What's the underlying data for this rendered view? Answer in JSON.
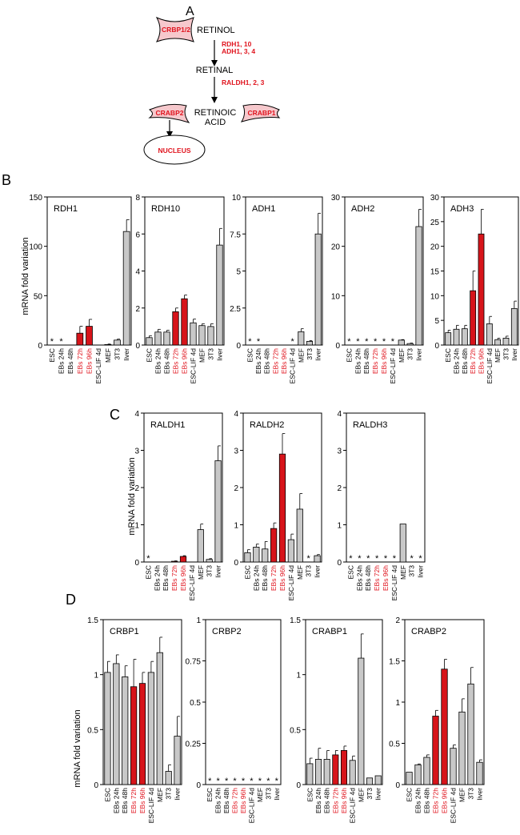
{
  "panels": {
    "A": "A",
    "B": "B",
    "C": "C",
    "D": "D"
  },
  "pathway": {
    "retinol": "RETINOL",
    "retinal": "RETINAL",
    "retinoic": "RETINOIC",
    "acid": "ACID",
    "nucleus": "NUCLEUS",
    "crbp12": "CRBP1/2",
    "crabp2": "CRABP2",
    "crabp1": "CRABP1",
    "enzymes_step1_line1": "RDH1, 10",
    "enzymes_step1_line2": "ADH1, 3, 4",
    "enzymes_step2": "RALDH1, 2, 3",
    "colors": {
      "red": "#e0141e",
      "pink_fill": "#f6c8cc",
      "black": "#000000"
    }
  },
  "ylabel": "mRNA fold variation",
  "categories": [
    "ESC",
    "EBs 24h",
    "EBs 48h",
    "EBs 72h",
    "EBs 96h",
    "ESC-LIF 4d",
    "MEF",
    "3T3",
    "liver"
  ],
  "highlight_categories": [
    "EBs 72h",
    "EBs 96h"
  ],
  "colors": {
    "bar_gray": "#c8c8c8",
    "bar_red": "#d7141a",
    "label_red": "#e0141e",
    "axis": "#000000"
  },
  "chart_data": [
    {
      "type": "bar",
      "name": "RDH1",
      "title": "RDH1",
      "ylim": [
        0,
        150
      ],
      "yticks": [
        0,
        50,
        100,
        150
      ],
      "values": [
        0,
        0,
        0,
        12,
        19,
        0,
        0.5,
        5,
        115
      ],
      "errors": [
        0,
        0,
        0,
        7,
        7,
        0,
        0.5,
        1,
        12
      ],
      "stars": [
        0,
        1
      ]
    },
    {
      "type": "bar",
      "name": "RDH10",
      "title": "RDH10",
      "ylim": [
        0,
        8
      ],
      "yticks": [
        0,
        2,
        4,
        6,
        8
      ],
      "values": [
        0.4,
        0.7,
        0.7,
        1.8,
        2.5,
        1.2,
        1.05,
        1.0,
        5.4
      ],
      "errors": [
        0.1,
        0.15,
        0.1,
        0.2,
        0.2,
        0.2,
        0.1,
        0.15,
        0.9
      ],
      "stars": []
    },
    {
      "type": "bar",
      "name": "ADH1",
      "title": "ADH1",
      "ylim": [
        0,
        10
      ],
      "yticks": [
        0,
        2.5,
        5,
        7.5,
        10
      ],
      "values": [
        0,
        0,
        0,
        0,
        0,
        0,
        0.9,
        0.25,
        7.5
      ],
      "errors": [
        0,
        0,
        0,
        0,
        0,
        0,
        0.2,
        0.05,
        1.4
      ],
      "stars": [
        0,
        1,
        5
      ]
    },
    {
      "type": "bar",
      "name": "ADH2",
      "title": "ADH2",
      "ylim": [
        0,
        30
      ],
      "yticks": [
        0,
        10,
        20,
        30
      ],
      "values": [
        0,
        0,
        0,
        0,
        0,
        0,
        1,
        0.3,
        24
      ],
      "errors": [
        0,
        0,
        0,
        0,
        0,
        0,
        0.1,
        0.1,
        3.5
      ],
      "stars": [
        0,
        1,
        2,
        3,
        4,
        5
      ]
    },
    {
      "type": "bar",
      "name": "ADH3",
      "title": "ADH3",
      "ylim": [
        0,
        30
      ],
      "yticks": [
        0,
        5,
        10,
        15,
        20,
        25,
        30
      ],
      "values": [
        2.5,
        3.2,
        3.3,
        11,
        22.5,
        4.3,
        1.1,
        1.4,
        7.4
      ],
      "errors": [
        0.5,
        0.8,
        0.7,
        4,
        5,
        1.5,
        0.3,
        0.4,
        1.5
      ],
      "stars": []
    },
    {
      "type": "bar",
      "name": "RALDH1",
      "title": "RALDH1",
      "ylim": [
        0,
        4
      ],
      "yticks": [
        0,
        1,
        2,
        3,
        4
      ],
      "values": [
        0,
        0,
        0,
        0.02,
        0.15,
        0,
        0.87,
        0.07,
        2.72
      ],
      "errors": [
        0,
        0,
        0,
        0.01,
        0.02,
        0,
        0.15,
        0.02,
        0.4
      ],
      "stars": [
        0
      ]
    },
    {
      "type": "bar",
      "name": "RALDH2",
      "title": "RALDH2",
      "ylim": [
        0,
        4
      ],
      "yticks": [
        0,
        1,
        2,
        3,
        4
      ],
      "values": [
        0.25,
        0.4,
        0.35,
        0.9,
        2.9,
        0.6,
        1.42,
        0,
        0.17
      ],
      "errors": [
        0.08,
        0.08,
        0.2,
        0.15,
        0.55,
        0.15,
        0.42,
        0,
        0.03
      ],
      "stars": [
        7
      ]
    },
    {
      "type": "bar",
      "name": "RALDH3",
      "title": "RALDH3",
      "ylim": [
        0,
        4
      ],
      "yticks": [
        0,
        1,
        2,
        3,
        4
      ],
      "values": [
        0,
        0,
        0,
        0,
        0,
        0,
        1.02,
        0,
        0
      ],
      "errors": [
        0,
        0,
        0,
        0,
        0,
        0,
        0,
        0,
        0
      ],
      "stars": [
        0,
        1,
        2,
        3,
        4,
        5,
        7,
        8
      ]
    },
    {
      "type": "bar",
      "name": "CRBP1",
      "title": "CRBP1",
      "ylim": [
        0,
        1.5
      ],
      "yticks": [
        0,
        0.5,
        1,
        1.5
      ],
      "values": [
        1.02,
        1.1,
        0.98,
        0.89,
        0.92,
        1.02,
        1.2,
        0.12,
        0.44
      ],
      "errors": [
        0.1,
        0.08,
        0.1,
        0.25,
        0.1,
        0.1,
        0.14,
        0.06,
        0.18
      ],
      "stars": []
    },
    {
      "type": "bar",
      "name": "CRBP2",
      "title": "CRBP2",
      "ylim": [
        0,
        1
      ],
      "yticks": [
        0,
        0.25,
        0.5,
        0.75,
        1
      ],
      "values": [
        0,
        0,
        0,
        0,
        0,
        0,
        0,
        0,
        0
      ],
      "errors": [
        0,
        0,
        0,
        0,
        0,
        0,
        0,
        0,
        0
      ],
      "stars": [
        0,
        1,
        2,
        3,
        4,
        5,
        6,
        7,
        8
      ]
    },
    {
      "type": "bar",
      "name": "CRABP1",
      "title": "CRABP1",
      "ylim": [
        0,
        1.5
      ],
      "yticks": [
        0,
        0.5,
        1,
        1.5
      ],
      "values": [
        0.19,
        0.23,
        0.23,
        0.27,
        0.31,
        0.22,
        1.15,
        0.06,
        0.08
      ],
      "errors": [
        0.05,
        0.1,
        0.08,
        0.04,
        0.04,
        0.04,
        0.22,
        0,
        0
      ],
      "stars": []
    },
    {
      "type": "bar",
      "name": "CRABP2",
      "title": "CRABP2",
      "ylim": [
        0,
        2
      ],
      "yticks": [
        0,
        0.5,
        1,
        1.5,
        2
      ],
      "values": [
        0.15,
        0.24,
        0.33,
        0.83,
        1.4,
        0.44,
        0.88,
        1.22,
        0.27
      ],
      "errors": [
        0,
        0.01,
        0.03,
        0.07,
        0.12,
        0.04,
        0.16,
        0.2,
        0.03
      ],
      "stars": []
    }
  ]
}
